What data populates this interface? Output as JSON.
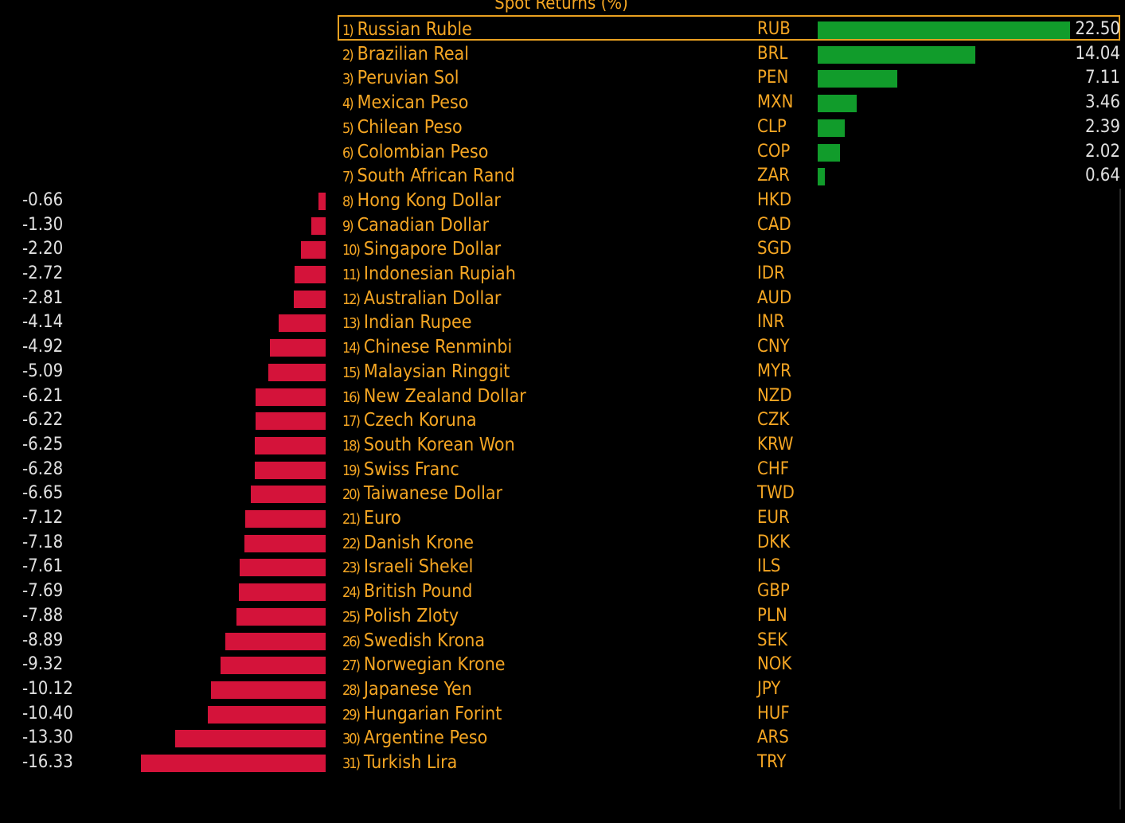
{
  "chart_data": {
    "type": "bar",
    "title": "Spot Returns (%)",
    "orientation": "horizontal",
    "colors": {
      "positive": "#119c2b",
      "negative": "#d4133a",
      "label": "#f5a623",
      "value": "#e0e0e0",
      "highlight": "#e8a020"
    },
    "highlighted_rank": 1,
    "rows": [
      {
        "rank": "1)",
        "name": "Russian Ruble",
        "code": "RUB",
        "value": 22.5,
        "label": "22.50"
      },
      {
        "rank": "2)",
        "name": "Brazilian Real",
        "code": "BRL",
        "value": 14.04,
        "label": "14.04"
      },
      {
        "rank": "3)",
        "name": "Peruvian Sol",
        "code": "PEN",
        "value": 7.11,
        "label": "7.11"
      },
      {
        "rank": "4)",
        "name": "Mexican Peso",
        "code": "MXN",
        "value": 3.46,
        "label": "3.46"
      },
      {
        "rank": "5)",
        "name": "Chilean Peso",
        "code": "CLP",
        "value": 2.39,
        "label": "2.39"
      },
      {
        "rank": "6)",
        "name": "Colombian Peso",
        "code": "COP",
        "value": 2.02,
        "label": "2.02"
      },
      {
        "rank": "7)",
        "name": "South African Rand",
        "code": "ZAR",
        "value": 0.64,
        "label": "0.64"
      },
      {
        "rank": "8)",
        "name": "Hong Kong Dollar",
        "code": "HKD",
        "value": -0.66,
        "label": "-0.66"
      },
      {
        "rank": "9)",
        "name": "Canadian Dollar",
        "code": "CAD",
        "value": -1.3,
        "label": "-1.30"
      },
      {
        "rank": "10)",
        "name": "Singapore Dollar",
        "code": "SGD",
        "value": -2.2,
        "label": "-2.20"
      },
      {
        "rank": "11)",
        "name": "Indonesian Rupiah",
        "code": "IDR",
        "value": -2.72,
        "label": "-2.72"
      },
      {
        "rank": "12)",
        "name": "Australian Dollar",
        "code": "AUD",
        "value": -2.81,
        "label": "-2.81"
      },
      {
        "rank": "13)",
        "name": "Indian Rupee",
        "code": "INR",
        "value": -4.14,
        "label": "-4.14"
      },
      {
        "rank": "14)",
        "name": "Chinese Renminbi",
        "code": "CNY",
        "value": -4.92,
        "label": "-4.92"
      },
      {
        "rank": "15)",
        "name": "Malaysian Ringgit",
        "code": "MYR",
        "value": -5.09,
        "label": "-5.09"
      },
      {
        "rank": "16)",
        "name": "New Zealand Dollar",
        "code": "NZD",
        "value": -6.21,
        "label": "-6.21"
      },
      {
        "rank": "17)",
        "name": "Czech Koruna",
        "code": "CZK",
        "value": -6.22,
        "label": "-6.22"
      },
      {
        "rank": "18)",
        "name": "South Korean Won",
        "code": "KRW",
        "value": -6.25,
        "label": "-6.25"
      },
      {
        "rank": "19)",
        "name": "Swiss Franc",
        "code": "CHF",
        "value": -6.28,
        "label": "-6.28"
      },
      {
        "rank": "20)",
        "name": "Taiwanese Dollar",
        "code": "TWD",
        "value": -6.65,
        "label": "-6.65"
      },
      {
        "rank": "21)",
        "name": "Euro",
        "code": "EUR",
        "value": -7.12,
        "label": "-7.12"
      },
      {
        "rank": "22)",
        "name": "Danish Krone",
        "code": "DKK",
        "value": -7.18,
        "label": "-7.18"
      },
      {
        "rank": "23)",
        "name": "Israeli Shekel",
        "code": "ILS",
        "value": -7.61,
        "label": "-7.61"
      },
      {
        "rank": "24)",
        "name": "British Pound",
        "code": "GBP",
        "value": -7.69,
        "label": "-7.69"
      },
      {
        "rank": "25)",
        "name": "Polish Zloty",
        "code": "PLN",
        "value": -7.88,
        "label": "-7.88"
      },
      {
        "rank": "26)",
        "name": "Swedish Krona",
        "code": "SEK",
        "value": -8.89,
        "label": "-8.89"
      },
      {
        "rank": "27)",
        "name": "Norwegian Krone",
        "code": "NOK",
        "value": -9.32,
        "label": "-9.32"
      },
      {
        "rank": "28)",
        "name": "Japanese Yen",
        "code": "JPY",
        "value": -10.12,
        "label": "-10.12"
      },
      {
        "rank": "29)",
        "name": "Hungarian Forint",
        "code": "HUF",
        "value": -10.4,
        "label": "-10.40"
      },
      {
        "rank": "30)",
        "name": "Argentine Peso",
        "code": "ARS",
        "value": -13.3,
        "label": "-13.30"
      },
      {
        "rank": "31)",
        "name": "Turkish Lira",
        "code": "TRY",
        "value": -16.33,
        "label": "-16.33"
      }
    ]
  }
}
